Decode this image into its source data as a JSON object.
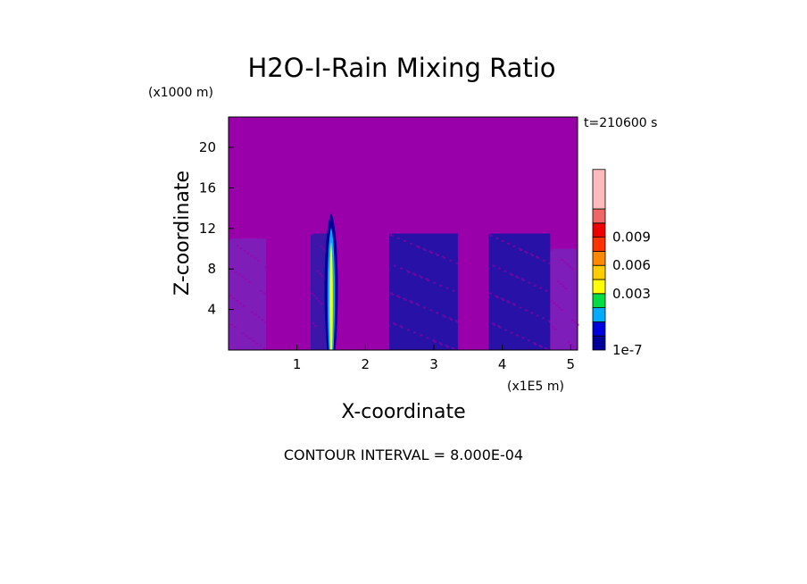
{
  "chart_data": {
    "type": "heatmap",
    "title": "H2O-I-Rain Mixing Ratio",
    "xlabel": "X-coordinate",
    "ylabel": "Z-coordinate",
    "x_units": "(x1E5 m)",
    "y_units": "(x1000 m)",
    "time_label": "t=210600 s",
    "contour_interval_label": "CONTOUR INTERVAL = 8.000E-04",
    "xlim": [
      0,
      5.1
    ],
    "ylim": [
      0,
      23
    ],
    "x_ticks": [
      1,
      2,
      3,
      4,
      5
    ],
    "y_ticks": [
      4,
      8,
      12,
      16,
      20
    ],
    "x_tick_labels": [
      "1",
      "2",
      "3",
      "4",
      "5"
    ],
    "y_tick_labels": [
      "4",
      "8",
      "12",
      "16",
      "20"
    ],
    "background_color": "#9900aa",
    "colorbar": {
      "colors": [
        "#000099",
        "#0000dd",
        "#00aaff",
        "#00dd44",
        "#ffff00",
        "#ffcc00",
        "#ff8800",
        "#ff3300",
        "#ee0000",
        "#ee6666",
        "#ffbbbb"
      ],
      "labels": [
        {
          "text": "1e-7",
          "value": 1e-07,
          "level": 0
        },
        {
          "text": "0.003",
          "value": 0.003,
          "level": 3
        },
        {
          "text": "0.006",
          "value": 0.006,
          "level": 5
        },
        {
          "text": "0.009",
          "value": 0.009,
          "level": 7
        }
      ]
    },
    "regions": [
      {
        "name": "low-weak-band",
        "x0": 0.0,
        "x1": 0.55,
        "z0": 0,
        "z1": 11,
        "color": "#7a22bb"
      },
      {
        "name": "cell-a",
        "x0": 1.2,
        "x1": 1.55,
        "z0": 0,
        "z1": 11.5,
        "color": "#2a1aa8"
      },
      {
        "name": "cell-b",
        "x0": 2.35,
        "x1": 3.35,
        "z0": 0,
        "z1": 11.5,
        "color": "#1414a6"
      },
      {
        "name": "cell-c",
        "x0": 3.8,
        "x1": 4.7,
        "z0": 0,
        "z1": 11.5,
        "color": "#1414a6"
      },
      {
        "name": "weak-strip",
        "x0": 4.7,
        "x1": 5.1,
        "z0": 0,
        "z1": 10,
        "color": "#7a22bb"
      }
    ],
    "plume": {
      "x": 1.5,
      "z_top": 13.5,
      "peak_z": 6,
      "levels": [
        "#000099",
        "#00aaff",
        "#ffff00"
      ]
    }
  }
}
